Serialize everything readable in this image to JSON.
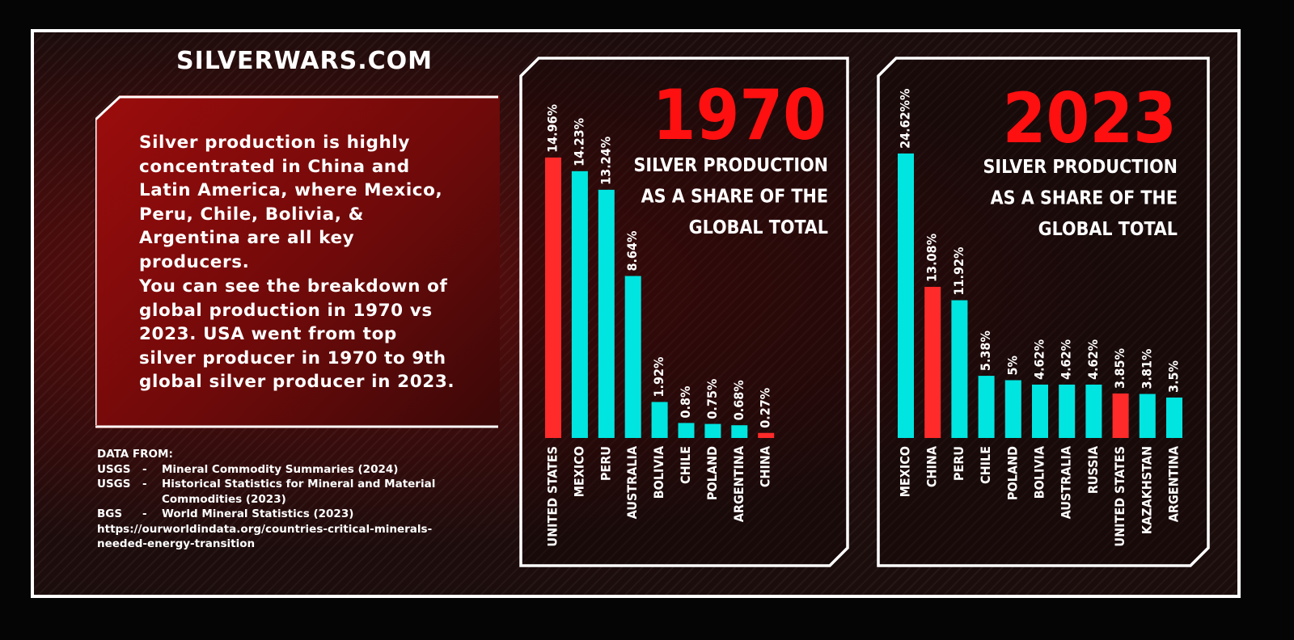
{
  "brand": "SILVERWARS.COM",
  "intro": {
    "paragraph1": "Silver production is highly concentrated in China and Latin America, where Mexico, Peru, Chile, Bolivia, & Argentina are all key producers.",
    "paragraph2": "You can see the breakdown of global production in 1970 vs 2023. USA went from top silver producer in 1970 to 9th global silver producer in 2023."
  },
  "sources": {
    "heading": "DATA FROM:",
    "entries": [
      {
        "org": "USGS",
        "dash": "-",
        "title": "Mineral Commodity Summaries (2024)"
      },
      {
        "org": "USGS",
        "dash": "-",
        "title": "Historical Statistics for Mineral and Material Commodities (2023)"
      },
      {
        "org": "BGS",
        "dash": "-",
        "title": "World Mineral Statistics (2023)"
      }
    ],
    "url": "https://ourworldindata.org/countries-critical-minerals-needed-energy-transition"
  },
  "colors": {
    "highlight": "#ff2a2a",
    "bar": "#00e5e0",
    "year": "#ff1010",
    "text": "#ffffff"
  },
  "chart_data": [
    {
      "type": "bar",
      "title": "1970",
      "subtitle": [
        "SILVER PRODUCTION",
        "AS A SHARE OF THE",
        "GLOBAL TOTAL"
      ],
      "categories": [
        "UNITED STATES",
        "MEXICO",
        "PERU",
        "AUSTRALIA",
        "BOLIVIA",
        "CHILE",
        "POLAND",
        "ARGENTINA",
        "CHINA"
      ],
      "values": [
        14.96,
        14.23,
        13.24,
        8.64,
        1.92,
        0.8,
        0.75,
        0.68,
        0.27
      ],
      "labels": [
        "14.96%",
        "14.23%",
        "13.24%",
        "8.64%",
        "1.92%",
        "0.8%",
        "0.75%",
        "0.68%",
        "0.27%"
      ],
      "highlight": [
        "UNITED STATES",
        "CHINA"
      ],
      "xlabel": "",
      "ylabel": ""
    },
    {
      "type": "bar",
      "title": "2023",
      "subtitle": [
        "SILVER PRODUCTION",
        "AS A SHARE OF THE",
        "GLOBAL TOTAL"
      ],
      "categories": [
        "MEXICO",
        "CHINA",
        "PERU",
        "CHILE",
        "POLAND",
        "BOLIVIA",
        "AUSTRALIA",
        "RUSSIA",
        "UNITED STATES",
        "KAZAKHSTAN",
        "ARGENTINA"
      ],
      "values": [
        24.62,
        13.08,
        11.92,
        5.38,
        5,
        4.62,
        4.62,
        4.62,
        3.85,
        3.81,
        3.5
      ],
      "labels": [
        "24.62%%",
        "13.08%",
        "11.92%",
        "5.38%",
        "5%",
        "4.62%",
        "4.62%",
        "4.62%",
        "3.85%",
        "3.81%",
        "3.5%"
      ],
      "highlight": [
        "CHINA",
        "UNITED STATES"
      ],
      "xlabel": "",
      "ylabel": ""
    }
  ]
}
